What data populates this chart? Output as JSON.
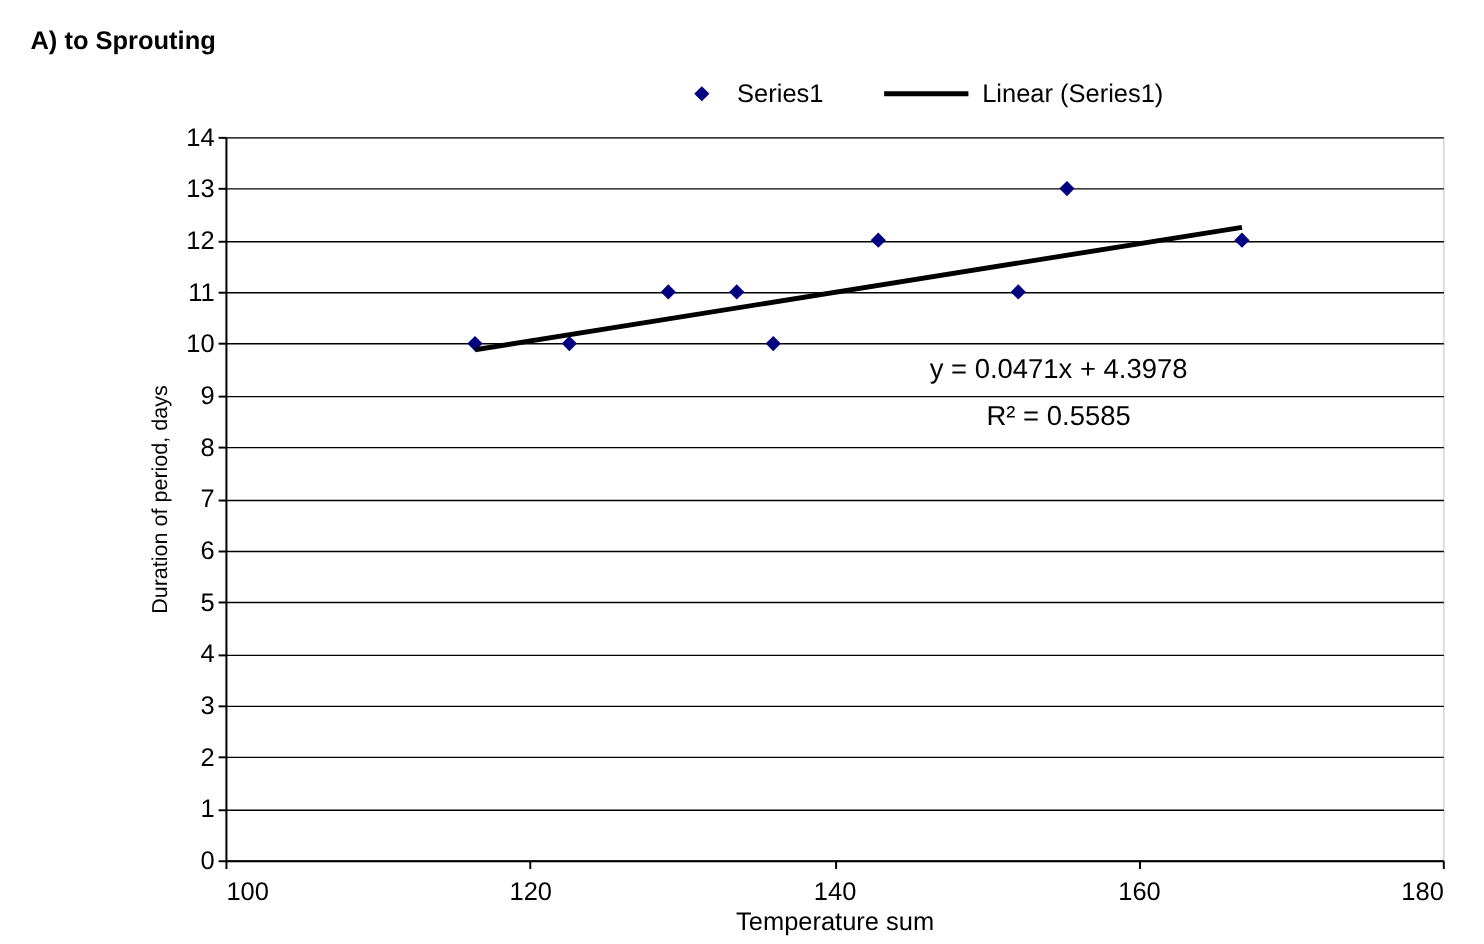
{
  "chart_data": {
    "type": "scatter",
    "title": "A)  to Sprouting",
    "xlabel": "Temperature sum",
    "ylabel": "Duration of period, days",
    "xlim": [
      100,
      180
    ],
    "xticks": [
      100,
      120,
      140,
      160,
      180
    ],
    "ylim": [
      0,
      14
    ],
    "yticks": [
      0,
      1,
      2,
      3,
      4,
      5,
      6,
      7,
      8,
      9,
      10,
      11,
      12,
      13,
      14
    ],
    "grid": "y",
    "legend": "top right",
    "series": [
      {
        "name": "Series1",
        "marker": "diamond",
        "color": "#000080",
        "x": [
          116.4,
          122.6,
          129.1,
          133.6,
          136.0,
          142.9,
          152.1,
          155.3,
          166.8
        ],
        "values": [
          10,
          10,
          11,
          11,
          10,
          12,
          11,
          13,
          12
        ]
      },
      {
        "name": "Linear (Series1)",
        "type": "line",
        "marker": "none",
        "color": "#000000",
        "line_style": "solid",
        "x": [
          116.4,
          166.8
        ],
        "values": [
          9.88,
          12.25
        ]
      }
    ],
    "annotations": [
      "y = 0.0471x + 4.3978",
      "R² = 0.5585"
    ]
  }
}
